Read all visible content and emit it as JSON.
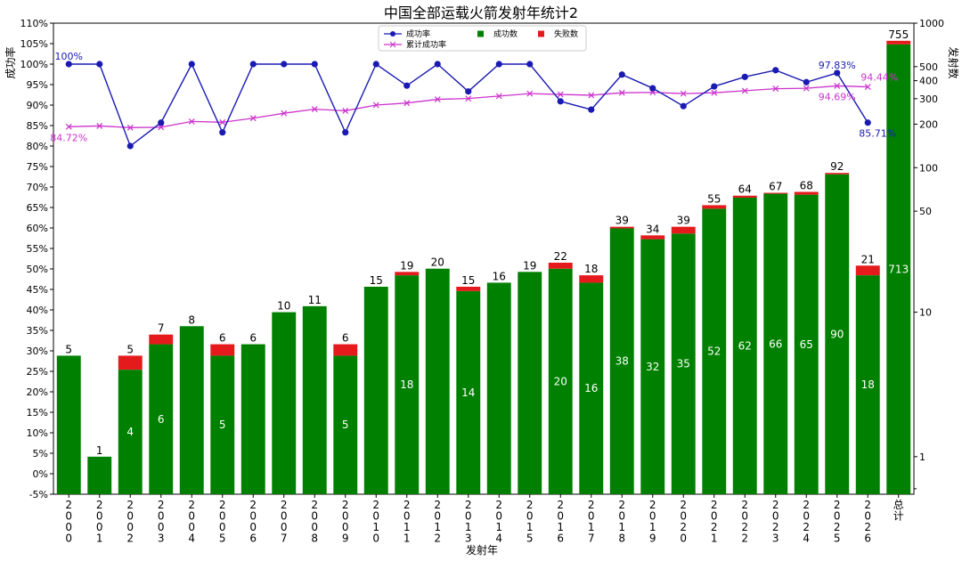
{
  "chart_data": {
    "type": "bar",
    "title": "中国全部运载火箭发射年统计2",
    "xlabel": "发射年",
    "ylabel_left": "成功率",
    "ylabel_right": "发射数",
    "categories": [
      "2000",
      "2001",
      "2002",
      "2003",
      "2004",
      "2005",
      "2006",
      "2007",
      "2008",
      "2009",
      "2010",
      "2011",
      "2012",
      "2013",
      "2014",
      "2015",
      "2016",
      "2017",
      "2018",
      "2019",
      "2020",
      "2021",
      "2022",
      "2023",
      "2024",
      "2025",
      "2026",
      "总计"
    ],
    "category_display": [
      "2\n0\n0\n0",
      "2\n0\n0\n1",
      "2\n0\n0\n2",
      "2\n0\n0\n3",
      "2\n0\n0\n4",
      "2\n0\n0\n5",
      "2\n0\n0\n6",
      "2\n0\n0\n7",
      "2\n0\n0\n8",
      "2\n0\n0\n9",
      "2\n0\n1\n0",
      "2\n0\n1\n1",
      "2\n0\n1\n2",
      "2\n0\n1\n3",
      "2\n0\n1\n4",
      "2\n0\n1\n5",
      "2\n0\n1\n6",
      "2\n0\n1\n7",
      "2\n0\n1\n8",
      "2\n0\n1\n9",
      "2\n0\n2\n0",
      "2\n0\n2\n1",
      "2\n0\n2\n2",
      "2\n0\n2\n3",
      "2\n0\n2\n4",
      "2\n0\n2\n5",
      "2\n0\n2\n6",
      "总\n计"
    ],
    "launches": [
      5,
      1,
      5,
      7,
      8,
      6,
      6,
      10,
      11,
      6,
      15,
      19,
      20,
      15,
      16,
      19,
      22,
      18,
      39,
      34,
      39,
      55,
      64,
      67,
      68,
      92,
      21,
      755
    ],
    "successes": [
      5,
      1,
      4,
      6,
      8,
      5,
      6,
      10,
      11,
      5,
      15,
      18,
      20,
      14,
      16,
      19,
      20,
      16,
      38,
      32,
      35,
      52,
      62,
      66,
      65,
      90,
      18,
      713
    ],
    "success_labels_shown": [
      null,
      null,
      "4",
      "6",
      null,
      "5",
      null,
      null,
      null,
      "5",
      null,
      "18",
      null,
      "14",
      null,
      null,
      "20",
      "16",
      "38",
      "32",
      "35",
      "52",
      "62",
      "66",
      "65",
      "90",
      "18",
      "713"
    ],
    "success_rate": [
      100,
      100,
      80,
      85.71,
      100,
      83.33,
      100,
      100,
      100,
      83.33,
      100,
      94.74,
      100,
      93.33,
      100,
      100,
      90.91,
      88.89,
      97.44,
      94.12,
      89.74,
      94.55,
      96.88,
      98.51,
      95.59,
      97.83,
      85.71
    ],
    "cumulative_success_rate": [
      84.72,
      84.9,
      84.5,
      84.6,
      86.0,
      85.8,
      86.8,
      88.0,
      89.0,
      88.6,
      90.0,
      90.5,
      91.4,
      91.6,
      92.2,
      92.8,
      92.6,
      92.4,
      93.0,
      93.1,
      92.8,
      93.0,
      93.5,
      94.0,
      94.1,
      94.69,
      94.44
    ],
    "annotations": [
      {
        "index": 0,
        "text": "100%",
        "series": "success_rate"
      },
      {
        "index": 0,
        "text": "84.72%",
        "series": "cumulative"
      },
      {
        "index": 25,
        "text": "97.83%",
        "series": "success_rate"
      },
      {
        "index": 25,
        "text": "94.69%",
        "series": "cumulative"
      },
      {
        "index": 26,
        "text": "85.71%",
        "series": "success_rate"
      },
      {
        "index": 26,
        "text": "94.44%",
        "series": "cumulative"
      }
    ],
    "left_axis": {
      "min": -5,
      "max": 110,
      "step": 5,
      "unit": "%"
    },
    "right_axis": {
      "scale": "log",
      "min": 0.55,
      "max": 1000,
      "labeled_ticks": [
        1,
        10,
        50,
        100,
        200,
        300,
        400,
        500,
        1000
      ]
    },
    "legend": {
      "placement": "top-center",
      "items": [
        {
          "label": "成功率",
          "marker": "circle-line",
          "color": "#1a1ab3"
        },
        {
          "label": "成功数",
          "marker": "square",
          "color": "#008000"
        },
        {
          "label": "失败数",
          "marker": "square",
          "color": "#e41a1c"
        },
        {
          "label": "累计成功率",
          "marker": "x-line",
          "color": "#cc33cc"
        }
      ]
    },
    "colors": {
      "success": "#008000",
      "failure": "#e41a1c",
      "rate": "#1a1ab3",
      "cumulative": "#cc33cc"
    },
    "grid": false
  }
}
